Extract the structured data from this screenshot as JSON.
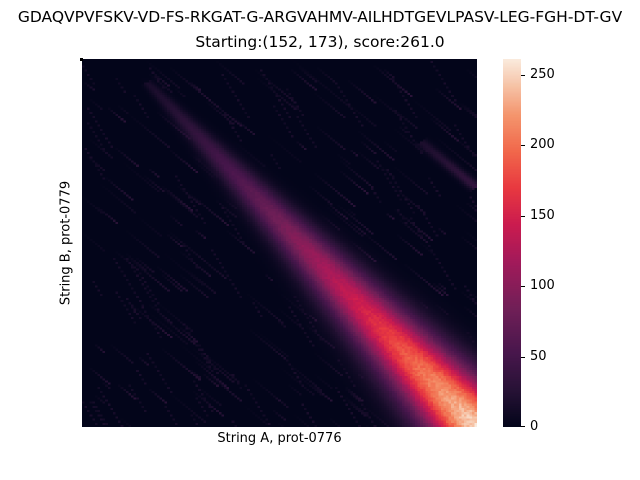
{
  "chart_data": {
    "type": "heatmap",
    "title": "GDAQVPVFSKV-VD-FS-RKGAT-G-ARGVAHMV-AILHDTGEVLPASV-LEG-FGH-DT-GV",
    "subtitle": "Starting:(152, 173), score:261.0",
    "xlabel": "String A, prot-0776",
    "ylabel": "String B, prot-0779",
    "colorbar": {
      "ticks": [
        0,
        50,
        100,
        150,
        200,
        250
      ],
      "range": [
        0,
        261
      ],
      "colormap": "rocket"
    },
    "max_cell": [
      152,
      173
    ],
    "max_value": 261.0,
    "main_diagonal": {
      "start_cell": [
        22,
        7
      ],
      "end_cell": [
        152,
        173
      ],
      "end_value": 261
    },
    "secondary_streak": {
      "start_cell": [
        131,
        39
      ],
      "end_cell": [
        152,
        60
      ],
      "value": 35
    },
    "grid_size": {
      "cols": 153,
      "rows": 174
    },
    "grid": false
  }
}
